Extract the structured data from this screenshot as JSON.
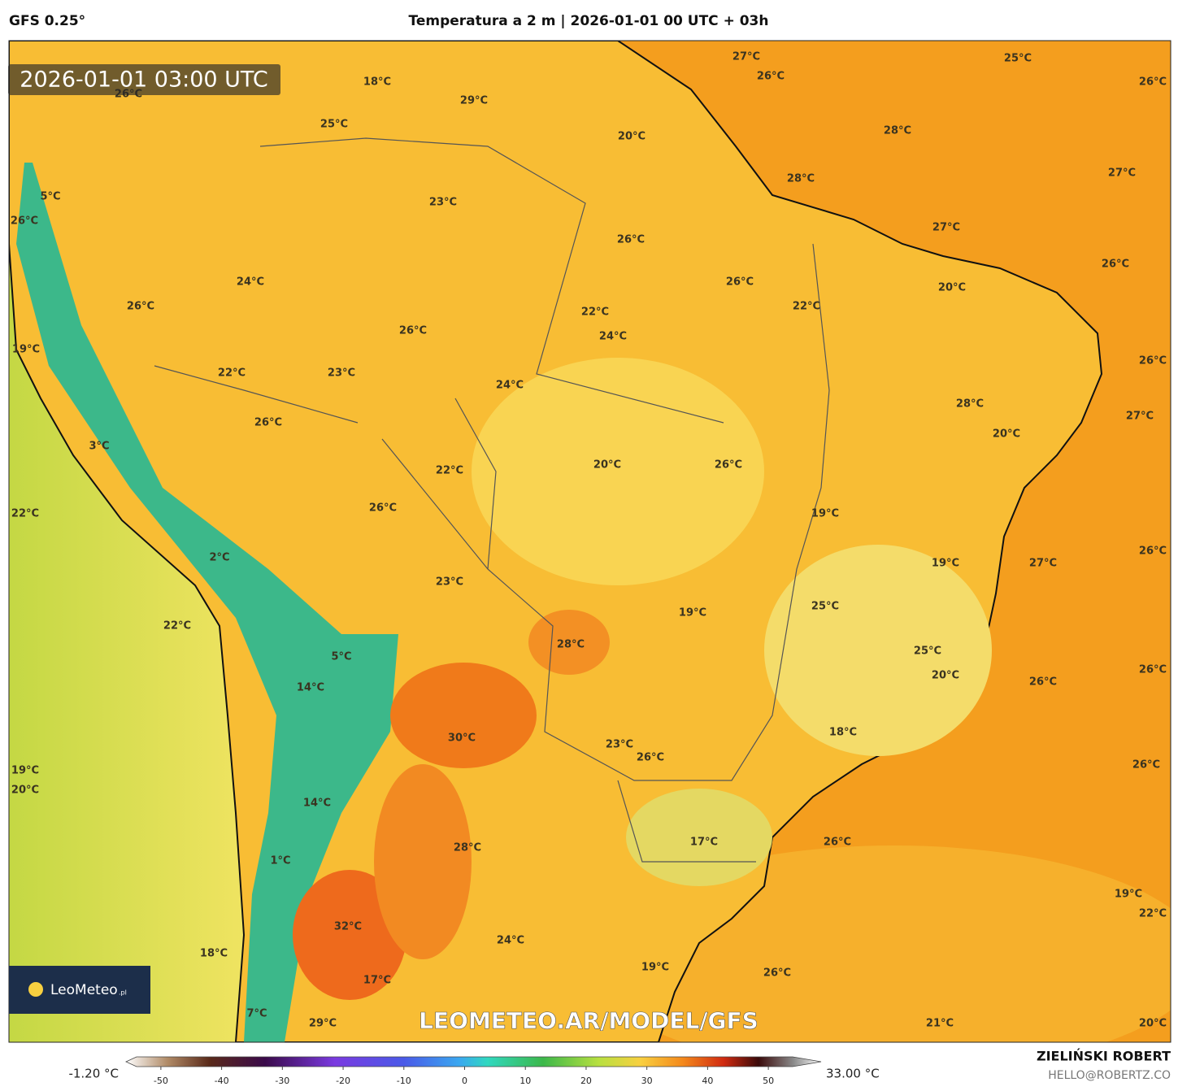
{
  "header": {
    "model": "GFS 0.25°",
    "title": "Temperatura a 2 m | 2026-01-01 00 UTC + 03h"
  },
  "map": {
    "timestamp": "2026-01-01 03:00 UTC",
    "watermark": "LEOMETEO.AR/MODEL/GFS",
    "logo": "LeoMeteo",
    "logo_suffix": ".pl",
    "temperature_labels": [
      "27°C",
      "25°C",
      "26°C",
      "26°C",
      "18°C",
      "26°C",
      "29°C",
      "25°C",
      "28°C",
      "20°C",
      "27°C",
      "28°C",
      "23°C",
      "5°C",
      "26°C",
      "27°C",
      "26°C",
      "26°C",
      "24°C",
      "26°C",
      "20°C",
      "22°C",
      "26°C",
      "22°C",
      "26°C",
      "24°C",
      "19°C",
      "26°C",
      "22°C",
      "23°C",
      "24°C",
      "28°C",
      "27°C",
      "26°C",
      "20°C",
      "3°C",
      "22°C",
      "20°C",
      "26°C",
      "26°C",
      "19°C",
      "22°C",
      "2°C",
      "19°C",
      "27°C",
      "26°C",
      "23°C",
      "25°C",
      "19°C",
      "22°C",
      "28°C",
      "5°C",
      "25°C",
      "26°C",
      "20°C",
      "26°C",
      "14°C",
      "18°C",
      "30°C",
      "23°C",
      "26°C",
      "26°C",
      "19°C",
      "20°C",
      "14°C",
      "26°C",
      "17°C",
      "28°C",
      "1°C",
      "19°C",
      "32°C",
      "22°C",
      "24°C",
      "18°C",
      "19°C",
      "26°C",
      "17°C",
      "7°C",
      "29°C",
      "21°C",
      "20°C"
    ]
  },
  "colorbar": {
    "min_label": "-1.20 °C",
    "max_label": "33.00 °C",
    "range": [
      -54,
      54
    ],
    "ticks": [
      -50,
      -40,
      -30,
      -20,
      -10,
      0,
      10,
      20,
      30,
      40,
      50
    ]
  },
  "footer": {
    "author": "ZIELIŃSKI ROBERT",
    "email": "HELLO@ROBERTZ.CO"
  }
}
